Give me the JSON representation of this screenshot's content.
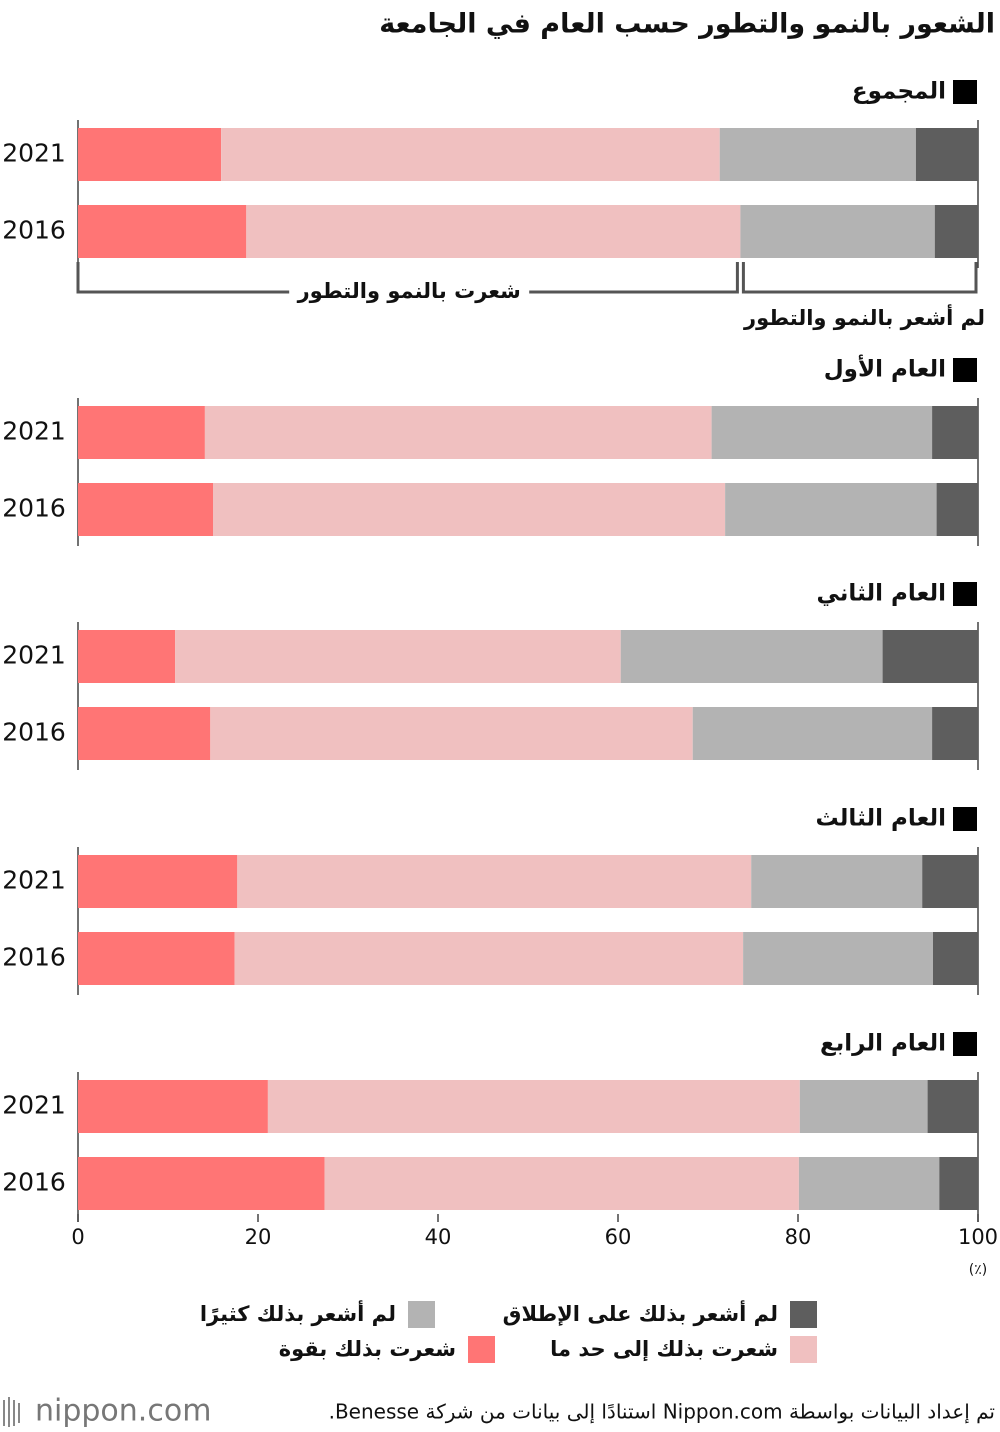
{
  "chart_data": {
    "type": "bar",
    "title": "الشعور بالنمو والتطور حسب العام في الجامعة",
    "xlim": [
      0,
      100
    ],
    "xticks": [
      0,
      20,
      40,
      60,
      80,
      100
    ],
    "unit": "(٪)",
    "panels": [
      {
        "title": "المجموع",
        "categories": [
          "2021",
          "2016"
        ]
      },
      {
        "title": "العام الأول",
        "categories": [
          "2021",
          "2016"
        ]
      },
      {
        "title": "العام الثاني",
        "categories": [
          "2021",
          "2016"
        ]
      },
      {
        "title": "العام الثالث",
        "categories": [
          "2021",
          "2016"
        ]
      },
      {
        "title": "العام الرابع",
        "categories": [
          "2021",
          "2016"
        ]
      }
    ],
    "series": [
      {
        "name": "شعرت بذلك بقوة",
        "color": "#ff7575",
        "values": [
          [
            15.9,
            18.7
          ],
          [
            14.1,
            15.0
          ],
          [
            10.8,
            14.7
          ],
          [
            17.7,
            17.4
          ],
          [
            21.1,
            27.4
          ]
        ]
      },
      {
        "name": "شعرت بذلك إلى حد ما",
        "color": "#f0c0c0",
        "values": [
          [
            55.4,
            54.9
          ],
          [
            56.3,
            56.9
          ],
          [
            49.5,
            53.6
          ],
          [
            57.1,
            56.5
          ],
          [
            59.1,
            52.7
          ]
        ]
      },
      {
        "name": "لم أشعر بذلك كثيرًا",
        "color": "#b3b3b3",
        "values": [
          [
            21.8,
            21.6
          ],
          [
            24.5,
            23.5
          ],
          [
            29.1,
            26.6
          ],
          [
            19.0,
            21.1
          ],
          [
            14.2,
            15.6
          ]
        ]
      },
      {
        "name": "لم أشعر بذلك على الإطلاق",
        "color": "#5e5e5e",
        "values": [
          [
            6.9,
            4.8
          ],
          [
            5.1,
            4.6
          ],
          [
            10.6,
            5.1
          ],
          [
            6.2,
            5.0
          ],
          [
            5.6,
            4.3
          ]
        ]
      }
    ],
    "annotations": [
      "شعرت بالنمو والتطور",
      "لم أشعر بالنمو والتطور"
    ],
    "source": "تم إعداد البيانات بواسطة Nippon.com استنادًا إلى بيانات من شركة Benesse.",
    "logo": "nippon.com"
  }
}
